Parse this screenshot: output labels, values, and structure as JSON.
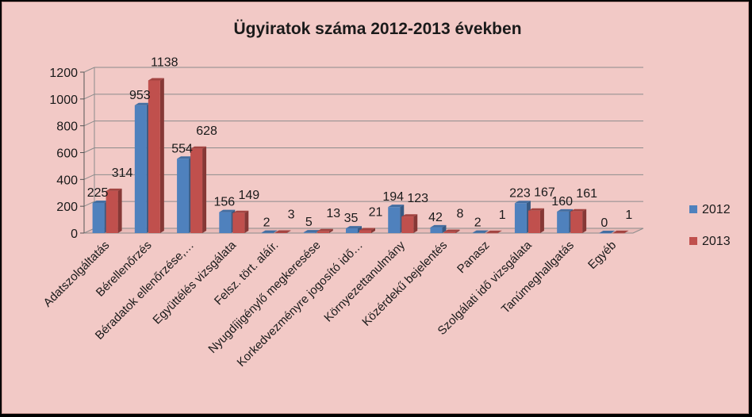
{
  "chart_data": {
    "type": "bar",
    "title": "Ügyiratok száma 2012-2013 években",
    "xlabel": "",
    "ylabel": "",
    "ylim": [
      0,
      1200
    ],
    "yticks": [
      0,
      200,
      400,
      600,
      800,
      1000,
      1200
    ],
    "grid": true,
    "legend_position": "right",
    "categories": [
      "Adatszolgáltatás",
      "Bérellenőrzés",
      "Béradatok ellenőrzése,…",
      "Együttélés vizsgálata",
      "Felsz. tört. aláír.",
      "Nyugdíjigénylő megkeresése",
      "Korkedvezményre jogosító idő…",
      "Környezettanulmány",
      "Közérdekű bejelentés",
      "Panasz",
      "Szolgálati idő vizsgálata",
      "Tanúmeghallgatás",
      "Egyéb"
    ],
    "series": [
      {
        "name": "2012",
        "color": "#4f81bd",
        "values": [
          225,
          953,
          554,
          156,
          2,
          5,
          35,
          194,
          42,
          2,
          223,
          160,
          0
        ]
      },
      {
        "name": "2013",
        "color": "#c0504d",
        "values": [
          314,
          1138,
          628,
          149,
          3,
          13,
          21,
          123,
          8,
          1,
          167,
          161,
          1
        ]
      }
    ]
  }
}
